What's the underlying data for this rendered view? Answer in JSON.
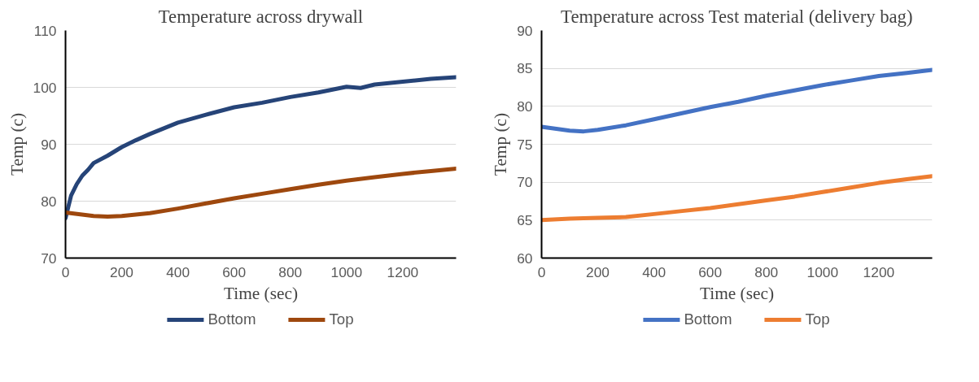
{
  "chart_data": [
    {
      "type": "line",
      "title": "Temperature across drywall",
      "xlabel": "Time (sec)",
      "ylabel": "Temp (c)",
      "xlim": [
        0,
        1390
      ],
      "xticks": [
        0,
        200,
        400,
        600,
        800,
        1000,
        1200
      ],
      "ylim": [
        70,
        110
      ],
      "yticks": [
        70,
        80,
        90,
        100,
        110
      ],
      "grid": "y",
      "legend": "bottom",
      "series": [
        {
          "name": "Bottom",
          "color": "#264478",
          "x": [
            0,
            10,
            20,
            40,
            60,
            80,
            100,
            150,
            200,
            250,
            300,
            400,
            500,
            600,
            700,
            800,
            900,
            1000,
            1050,
            1100,
            1200,
            1300,
            1390
          ],
          "values": [
            77,
            79,
            81,
            83,
            84.5,
            85.5,
            86.7,
            88,
            89.5,
            90.7,
            91.8,
            93.8,
            95.2,
            96.5,
            97.3,
            98.3,
            99.1,
            100.1,
            99.9,
            100.5,
            101,
            101.5,
            101.8
          ]
        },
        {
          "name": "Top",
          "color": "#9e480e",
          "x": [
            0,
            100,
            150,
            200,
            300,
            400,
            500,
            600,
            700,
            800,
            900,
            1000,
            1100,
            1200,
            1300,
            1390
          ],
          "values": [
            78,
            77.4,
            77.3,
            77.4,
            77.9,
            78.7,
            79.6,
            80.5,
            81.3,
            82.1,
            82.9,
            83.6,
            84.2,
            84.8,
            85.3,
            85.7
          ]
        }
      ]
    },
    {
      "type": "line",
      "title": "Temperature across Test material (delivery bag)",
      "xlabel": "Time (sec)",
      "ylabel": "Temp (c)",
      "xlim": [
        0,
        1390
      ],
      "xticks": [
        0,
        200,
        400,
        600,
        800,
        1000,
        1200
      ],
      "ylim": [
        60,
        90
      ],
      "yticks": [
        60,
        65,
        70,
        75,
        80,
        85,
        90
      ],
      "grid": "y",
      "legend": "bottom",
      "series": [
        {
          "name": "Bottom",
          "color": "#4472c4",
          "x": [
            0,
            100,
            150,
            200,
            300,
            400,
            500,
            600,
            700,
            800,
            900,
            1000,
            1100,
            1200,
            1300,
            1390
          ],
          "values": [
            77.3,
            76.8,
            76.7,
            76.9,
            77.5,
            78.3,
            79.1,
            79.9,
            80.6,
            81.4,
            82.1,
            82.8,
            83.4,
            84.0,
            84.4,
            84.8
          ]
        },
        {
          "name": "Top",
          "color": "#ed7d31",
          "x": [
            0,
            100,
            200,
            300,
            400,
            500,
            600,
            700,
            800,
            900,
            1000,
            1100,
            1200,
            1300,
            1390
          ],
          "values": [
            65,
            65.2,
            65.3,
            65.4,
            65.8,
            66.2,
            66.6,
            67.1,
            67.6,
            68.1,
            68.7,
            69.3,
            69.9,
            70.4,
            70.8
          ]
        }
      ]
    }
  ]
}
